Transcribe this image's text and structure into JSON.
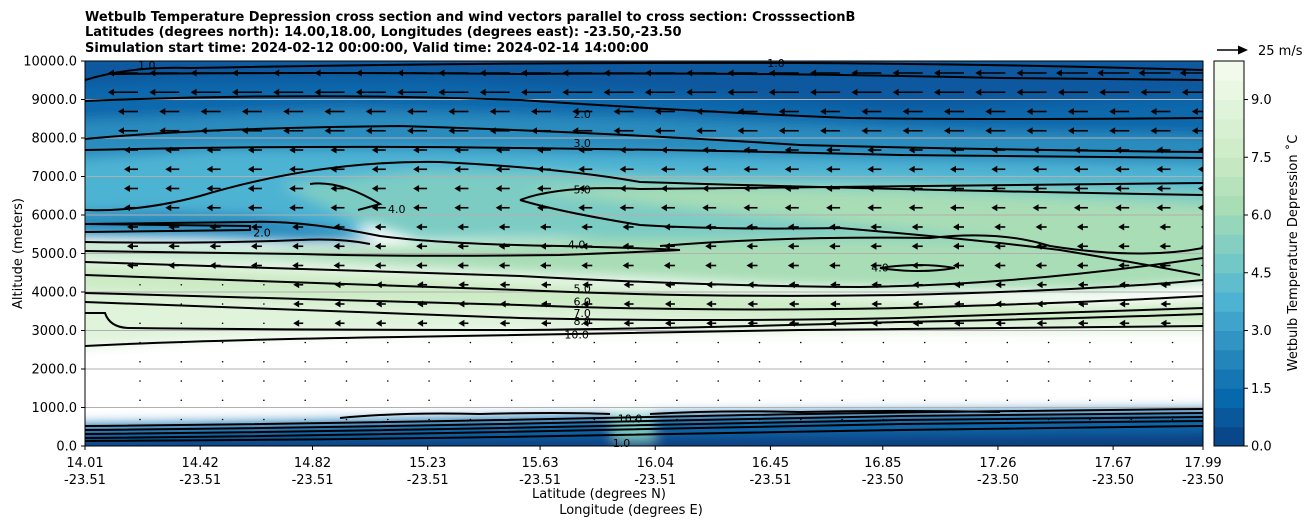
{
  "chart_data": {
    "type": "contourf",
    "title_lines": [
      "Wetbulb Temperature Depression cross section and wind vectors parallel to cross section: CrosssectionB",
      "Latitudes (degrees north): 14.00,18.00, Longitudes (degrees east): -23.50,-23.50",
      "Simulation start time: 2024-02-12 00:00:00, Valid time: 2024-02-14 14:00:00"
    ],
    "ylabel": "Altitude (meters)",
    "xlabel_lat": "Latitude (degrees N)",
    "xlabel_lon": "Longitude (degrees E)",
    "ylim": [
      0,
      10000
    ],
    "y_ticks": [
      "0.0",
      "1000.0",
      "2000.0",
      "3000.0",
      "4000.0",
      "5000.0",
      "6000.0",
      "7000.0",
      "8000.0",
      "9000.0",
      "10000.0"
    ],
    "y_tick_values": [
      0,
      1000,
      2000,
      3000,
      4000,
      5000,
      6000,
      7000,
      8000,
      9000,
      10000
    ],
    "x_range": [
      14.01,
      17.99
    ],
    "x_ticks": [
      {
        "lat": "14.01",
        "lon": "-23.51",
        "v": 14.01
      },
      {
        "lat": "14.42",
        "lon": "-23.51",
        "v": 14.42
      },
      {
        "lat": "14.82",
        "lon": "-23.51",
        "v": 14.82
      },
      {
        "lat": "15.23",
        "lon": "-23.51",
        "v": 15.23
      },
      {
        "lat": "15.63",
        "lon": "-23.51",
        "v": 15.63
      },
      {
        "lat": "16.04",
        "lon": "-23.51",
        "v": 16.04
      },
      {
        "lat": "16.45",
        "lon": "-23.51",
        "v": 16.45
      },
      {
        "lat": "16.85",
        "lon": "-23.50",
        "v": 16.85
      },
      {
        "lat": "17.26",
        "lon": "-23.50",
        "v": 17.26
      },
      {
        "lat": "17.67",
        "lon": "-23.50",
        "v": 17.67
      },
      {
        "lat": "17.99",
        "lon": "-23.50",
        "v": 17.99
      }
    ],
    "colorbar": {
      "label": "Wetbulb Temperature Depression ˚C",
      "range": [
        0,
        10
      ],
      "ticks": [
        "0.0",
        "1.5",
        "3.0",
        "4.5",
        "6.0",
        "7.5",
        "9.0"
      ],
      "tick_values": [
        0,
        1.5,
        3.0,
        4.5,
        6.0,
        7.5,
        9.0
      ],
      "colors": [
        "#084081",
        "#0868ac",
        "#2b8cbe",
        "#4eb3d3",
        "#7bccc4",
        "#a8ddb5",
        "#ccebc5",
        "#e0f3db",
        "#f7fcf0"
      ]
    },
    "quiver_key": {
      "label": "25 m/s",
      "value": 25
    },
    "contour_labels": [
      {
        "text": "1.0",
        "x": 14.23,
        "y": 9900
      },
      {
        "text": "1.0",
        "x": 16.47,
        "y": 9950
      },
      {
        "text": "2.0",
        "x": 15.78,
        "y": 8620
      },
      {
        "text": "3.0",
        "x": 15.78,
        "y": 7870
      },
      {
        "text": "4.0",
        "x": 15.12,
        "y": 6160
      },
      {
        "text": "2.0",
        "x": 14.64,
        "y": 5550
      },
      {
        "text": "5.0",
        "x": 15.78,
        "y": 6660
      },
      {
        "text": "4.0",
        "x": 15.76,
        "y": 5230
      },
      {
        "text": "4.0",
        "x": 16.84,
        "y": 4630
      },
      {
        "text": "5.0",
        "x": 15.78,
        "y": 4090
      },
      {
        "text": "6.0",
        "x": 15.78,
        "y": 3750
      },
      {
        "text": "7.0",
        "x": 15.78,
        "y": 3450
      },
      {
        "text": "8.0",
        "x": 15.78,
        "y": 3250
      },
      {
        "text": "10.0",
        "x": 15.76,
        "y": 2900
      },
      {
        "text": "10.0",
        "x": 15.95,
        "y": 720
      },
      {
        "text": "1.0",
        "x": 15.92,
        "y": 80
      }
    ]
  }
}
